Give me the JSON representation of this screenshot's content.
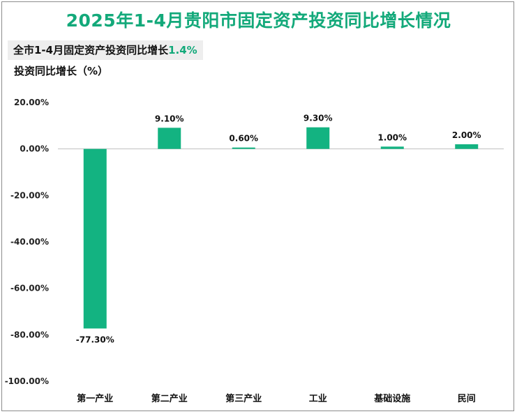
{
  "title": "2025年1-4月贵阳市固定资产投资同比增长情况",
  "summary": {
    "prefix": "全市1-4月固定资产投资同比增长",
    "value": "1.4%"
  },
  "colors": {
    "accent": "#13b381",
    "title": "#13a97a"
  },
  "chart_data": {
    "type": "bar",
    "ylabel": "投资同比增长（%）",
    "categories": [
      "第一产业",
      "第二产业",
      "第三产业",
      "工业",
      "基础设施",
      "民间"
    ],
    "values": [
      -77.3,
      9.1,
      0.6,
      9.3,
      1.0,
      2.0
    ],
    "value_labels": [
      "-77.30%",
      "9.10%",
      "0.60%",
      "9.30%",
      "1.00%",
      "2.00%"
    ],
    "ylim": [
      -100,
      20
    ],
    "yticks": [
      20,
      0,
      -20,
      -40,
      -60,
      -80,
      -100
    ],
    "ytick_labels": [
      "20.00%",
      "0.00%",
      "-20.00%",
      "-40.00%",
      "-60.00%",
      "-80.00%",
      "-100.00%"
    ],
    "grid": false,
    "legend": "none"
  }
}
